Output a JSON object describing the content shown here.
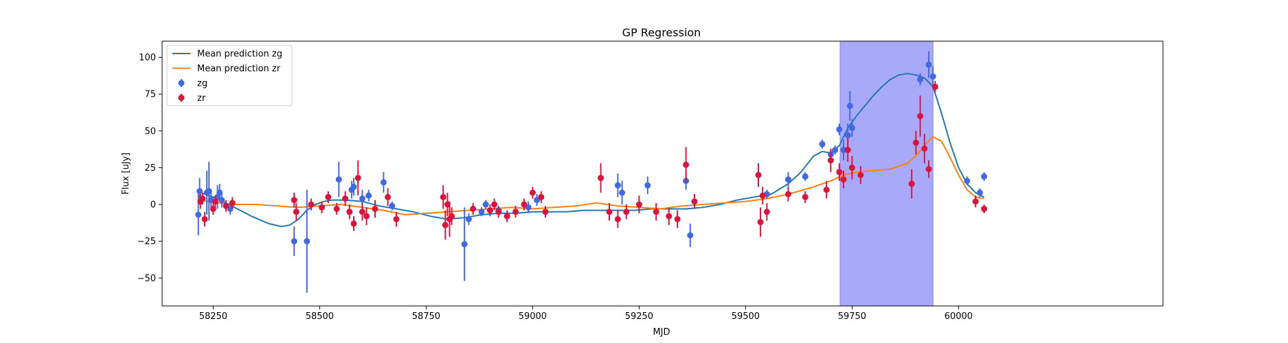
{
  "chart_data": {
    "type": "scatter",
    "title": "GP Regression",
    "xlabel": "MJD",
    "ylabel": "Flux [uJy]",
    "xlim": [
      58130,
      60480
    ],
    "ylim": [
      -69,
      111
    ],
    "xticks": [
      58250,
      58500,
      58750,
      59000,
      59250,
      59500,
      59750,
      60000
    ],
    "yticks": [
      -50,
      -25,
      0,
      25,
      50,
      75,
      100
    ],
    "grid": false,
    "legend_placement": "upper-left",
    "highlight_region": {
      "x0": 59722,
      "x1": 59940,
      "color": "#a9a9fb"
    },
    "series": [
      {
        "name": "Mean prediction zg",
        "kind": "line",
        "color": "#1f77b4",
        "x": [
          58220,
          58260,
          58300,
          58340,
          58380,
          58410,
          58430,
          58450,
          58470,
          58490,
          58510,
          58530,
          58560,
          58600,
          58640,
          58680,
          58720,
          58760,
          58800,
          58840,
          58880,
          58920,
          58960,
          59000,
          59040,
          59080,
          59120,
          59160,
          59200,
          59240,
          59280,
          59320,
          59360,
          59400,
          59440,
          59480,
          59520,
          59560,
          59600,
          59630,
          59660,
          59680,
          59700,
          59720,
          59740,
          59760,
          59780,
          59800,
          59820,
          59840,
          59860,
          59880,
          59900,
          59920,
          59940,
          59960,
          59980,
          60000,
          60020,
          60040,
          60060
        ],
        "y": [
          8,
          4,
          -2,
          -8,
          -13,
          -15,
          -14,
          -10,
          -4,
          0,
          2,
          3,
          3,
          2,
          -1,
          -3,
          -5,
          -8,
          -10,
          -9,
          -7,
          -6,
          -6,
          -5,
          -5,
          -5,
          -4,
          -4,
          -4,
          -4,
          -3,
          -3,
          -3,
          -2,
          0,
          3,
          5,
          7,
          14,
          22,
          33,
          36,
          35,
          40,
          52,
          60,
          67,
          74,
          80,
          85,
          88,
          89,
          88,
          86,
          80,
          62,
          42,
          25,
          14,
          8,
          5
        ]
      },
      {
        "name": "Mean prediction zr",
        "kind": "line",
        "color": "#ff7f0e",
        "x": [
          58220,
          58260,
          58300,
          58350,
          58400,
          58450,
          58500,
          58550,
          58600,
          58650,
          58700,
          58750,
          58800,
          58850,
          58900,
          58950,
          59000,
          59050,
          59100,
          59150,
          59200,
          59250,
          59300,
          59350,
          59400,
          59450,
          59500,
          59550,
          59600,
          59650,
          59700,
          59730,
          59760,
          59800,
          59840,
          59880,
          59900,
          59920,
          59940,
          59960,
          59980,
          60000,
          60020,
          60040,
          60060
        ],
        "y": [
          3,
          1,
          0,
          0,
          -1,
          -2,
          -1,
          0,
          -2,
          -4,
          -7,
          -6,
          -5,
          -4,
          -3,
          -2,
          -3,
          -2,
          -1,
          1,
          -1,
          -2,
          -3,
          -1,
          0,
          1,
          2,
          4,
          7,
          11,
          16,
          20,
          22,
          23,
          24,
          28,
          33,
          40,
          46,
          43,
          32,
          20,
          10,
          5,
          4
        ]
      },
      {
        "name": "zg",
        "kind": "errorbar",
        "color": "#4169e1",
        "x": [
          58215,
          58218,
          58235,
          58240,
          58245,
          58260,
          58265,
          58270,
          58290,
          58440,
          58470,
          58545,
          58575,
          58580,
          58600,
          58615,
          58650,
          58670,
          58840,
          58850,
          58880,
          58890,
          58920,
          58940,
          58990,
          59010,
          59200,
          59210,
          59270,
          59360,
          59370,
          59550,
          59600,
          59640,
          59680,
          59700,
          59710,
          59720,
          59730,
          59740,
          59745,
          59750,
          59910,
          59930,
          59940,
          60020,
          60050,
          60060
        ],
        "y": [
          -7,
          9,
          8,
          9,
          3,
          5,
          8,
          3,
          -3,
          -25,
          -25,
          17,
          10,
          12,
          4,
          6,
          15,
          -1,
          -27,
          -10,
          -5,
          0,
          -4,
          -8,
          -2,
          3,
          13,
          8,
          13,
          16,
          -21,
          7,
          17,
          19,
          41,
          34,
          37,
          51,
          37,
          47,
          67,
          52,
          85,
          95,
          87,
          16,
          8,
          19
        ],
        "err": [
          14,
          9,
          15,
          20,
          6,
          8,
          6,
          5,
          4,
          10,
          35,
          12,
          6,
          6,
          6,
          4,
          7,
          3,
          25,
          4,
          3,
          3,
          3,
          3,
          4,
          4,
          8,
          8,
          6,
          6,
          8,
          3,
          5,
          3,
          3,
          3,
          3,
          4,
          7,
          8,
          10,
          6,
          4,
          9,
          7,
          3,
          3,
          3
        ]
      },
      {
        "name": "zr",
        "kind": "errorbar",
        "color": "#dc143c",
        "x": [
          58220,
          58225,
          58230,
          58250,
          58255,
          58280,
          58295,
          58440,
          58445,
          58480,
          58505,
          58520,
          58540,
          58560,
          58570,
          58580,
          58590,
          58600,
          58610,
          58630,
          58660,
          58680,
          58790,
          58795,
          58800,
          58805,
          58810,
          58860,
          58900,
          58910,
          58920,
          58940,
          58960,
          58980,
          59000,
          59020,
          59030,
          59160,
          59180,
          59200,
          59220,
          59250,
          59290,
          59320,
          59340,
          59360,
          59380,
          59530,
          59535,
          59540,
          59550,
          59600,
          59640,
          59690,
          59700,
          59720,
          59730,
          59740,
          59750,
          59770,
          59890,
          59900,
          59910,
          59920,
          59930,
          59945,
          60040,
          60060
        ],
        "y": [
          2,
          4,
          -10,
          -3,
          2,
          -1,
          1,
          3,
          -5,
          0,
          -2,
          5,
          -3,
          4,
          -5,
          -13,
          18,
          -5,
          -8,
          -3,
          5,
          -10,
          5,
          -14,
          0,
          -10,
          -8,
          -3,
          -4,
          0,
          -5,
          -8,
          -5,
          0,
          8,
          5,
          -5,
          18,
          -5,
          -10,
          -5,
          0,
          -5,
          -8,
          -10,
          27,
          2,
          20,
          -12,
          6,
          -5,
          7,
          5,
          10,
          30,
          22,
          17,
          37,
          25,
          20,
          14,
          42,
          60,
          38,
          24,
          80,
          2,
          -3
        ],
        "err": [
          5,
          4,
          5,
          4,
          4,
          4,
          4,
          5,
          6,
          4,
          4,
          4,
          4,
          5,
          5,
          5,
          12,
          6,
          6,
          6,
          6,
          5,
          8,
          10,
          8,
          12,
          6,
          4,
          4,
          4,
          4,
          4,
          4,
          4,
          4,
          4,
          4,
          10,
          6,
          6,
          5,
          6,
          6,
          6,
          6,
          12,
          5,
          8,
          10,
          6,
          6,
          5,
          4,
          6,
          8,
          6,
          6,
          8,
          8,
          6,
          10,
          8,
          14,
          10,
          6,
          4,
          4,
          3
        ]
      }
    ]
  }
}
